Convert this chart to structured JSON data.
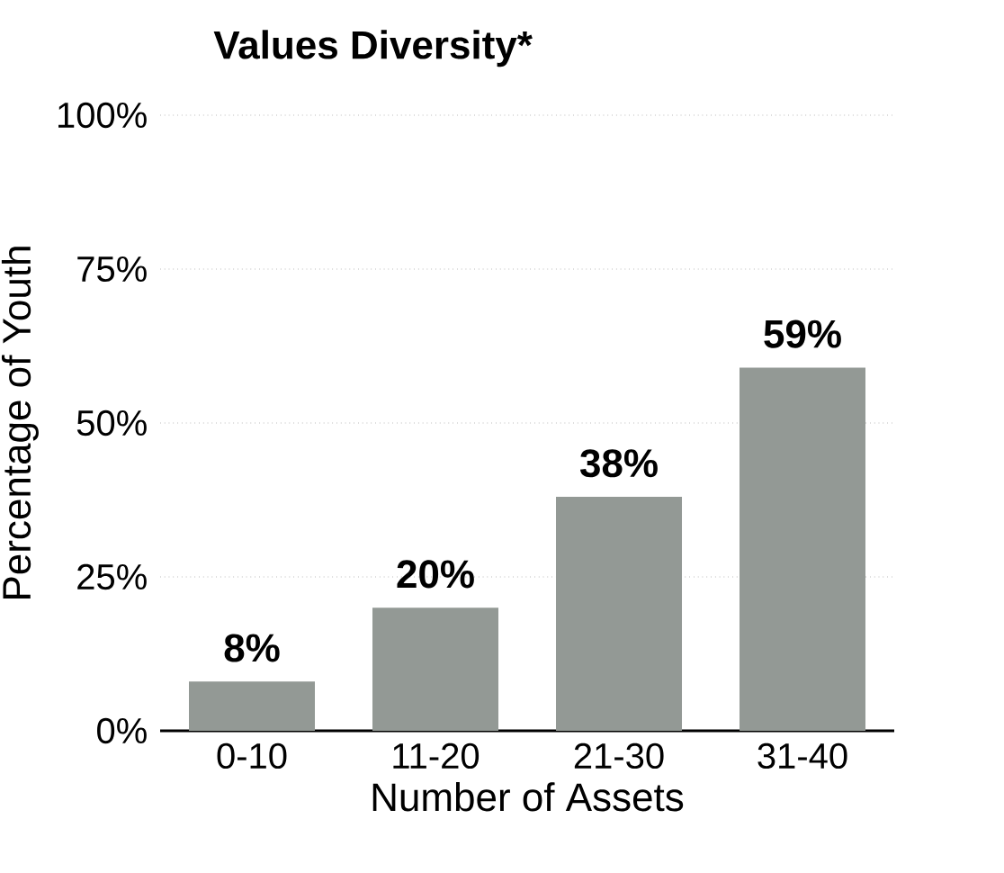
{
  "chart_data": {
    "type": "bar",
    "title": "Values Diversity*",
    "xlabel": "Number of Assets",
    "ylabel": "Percentage of Youth",
    "categories": [
      "0-10",
      "11-20",
      "21-30",
      "31-40"
    ],
    "values": [
      8,
      20,
      38,
      59
    ],
    "value_labels": [
      "8%",
      "20%",
      "38%",
      "59%"
    ],
    "color": "#939995",
    "ylim": [
      0,
      100
    ],
    "yticks": [
      {
        "value": 0,
        "label": "0%"
      },
      {
        "value": 25,
        "label": "25%"
      },
      {
        "value": 50,
        "label": "50%"
      },
      {
        "value": 75,
        "label": "75%"
      },
      {
        "value": 100,
        "label": "100%"
      }
    ],
    "grid": "y"
  }
}
